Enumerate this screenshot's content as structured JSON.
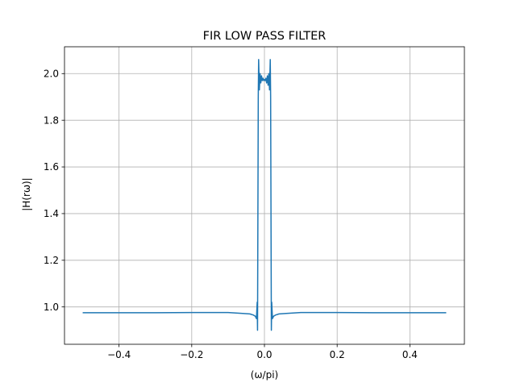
{
  "chart_data": {
    "type": "line",
    "title": "FIR LOW PASS FILTER",
    "xlabel": "(ω/pi)",
    "ylabel": "|H(rω)|",
    "xlim": [
      -0.55,
      0.55
    ],
    "ylim": [
      0.84,
      2.115
    ],
    "grid": true,
    "legend": "none",
    "xticks": [
      -0.4,
      -0.2,
      0.0,
      0.2,
      0.4
    ],
    "xtick_labels": [
      "−0.4",
      "−0.2",
      "0.0",
      "0.2",
      "0.4"
    ],
    "yticks": [
      1.0,
      1.2,
      1.4,
      1.6,
      1.8,
      2.0
    ],
    "ytick_labels": [
      "1.0",
      "1.2",
      "1.4",
      "1.6",
      "1.8",
      "2.0"
    ],
    "series": [
      {
        "color": "#1f77b4",
        "x": [
          -0.5,
          -0.4,
          -0.3,
          -0.2,
          -0.1,
          -0.06,
          -0.04,
          -0.03,
          -0.025,
          -0.022,
          -0.02,
          -0.019,
          -0.018,
          -0.017,
          -0.016,
          -0.014,
          -0.012,
          -0.01,
          -0.008,
          -0.006,
          -0.004,
          -0.002,
          0.0,
          0.002,
          0.004,
          0.006,
          0.008,
          0.01,
          0.012,
          0.014,
          0.016,
          0.017,
          0.018,
          0.019,
          0.02,
          0.022,
          0.025,
          0.03,
          0.04,
          0.06,
          0.1,
          0.2,
          0.3,
          0.4,
          0.5
        ],
        "y": [
          0.975,
          0.975,
          0.975,
          0.976,
          0.976,
          0.972,
          0.97,
          0.965,
          0.96,
          0.95,
          1.02,
          0.9,
          1.4,
          1.9,
          2.06,
          1.93,
          2.0,
          1.96,
          1.99,
          1.97,
          1.98,
          1.97,
          1.975,
          1.97,
          1.98,
          1.96,
          1.99,
          1.95,
          2.0,
          1.93,
          2.06,
          1.9,
          1.4,
          0.9,
          1.02,
          0.95,
          0.96,
          0.965,
          0.97,
          0.972,
          0.976,
          0.976,
          0.975,
          0.975,
          0.975
        ]
      }
    ]
  }
}
